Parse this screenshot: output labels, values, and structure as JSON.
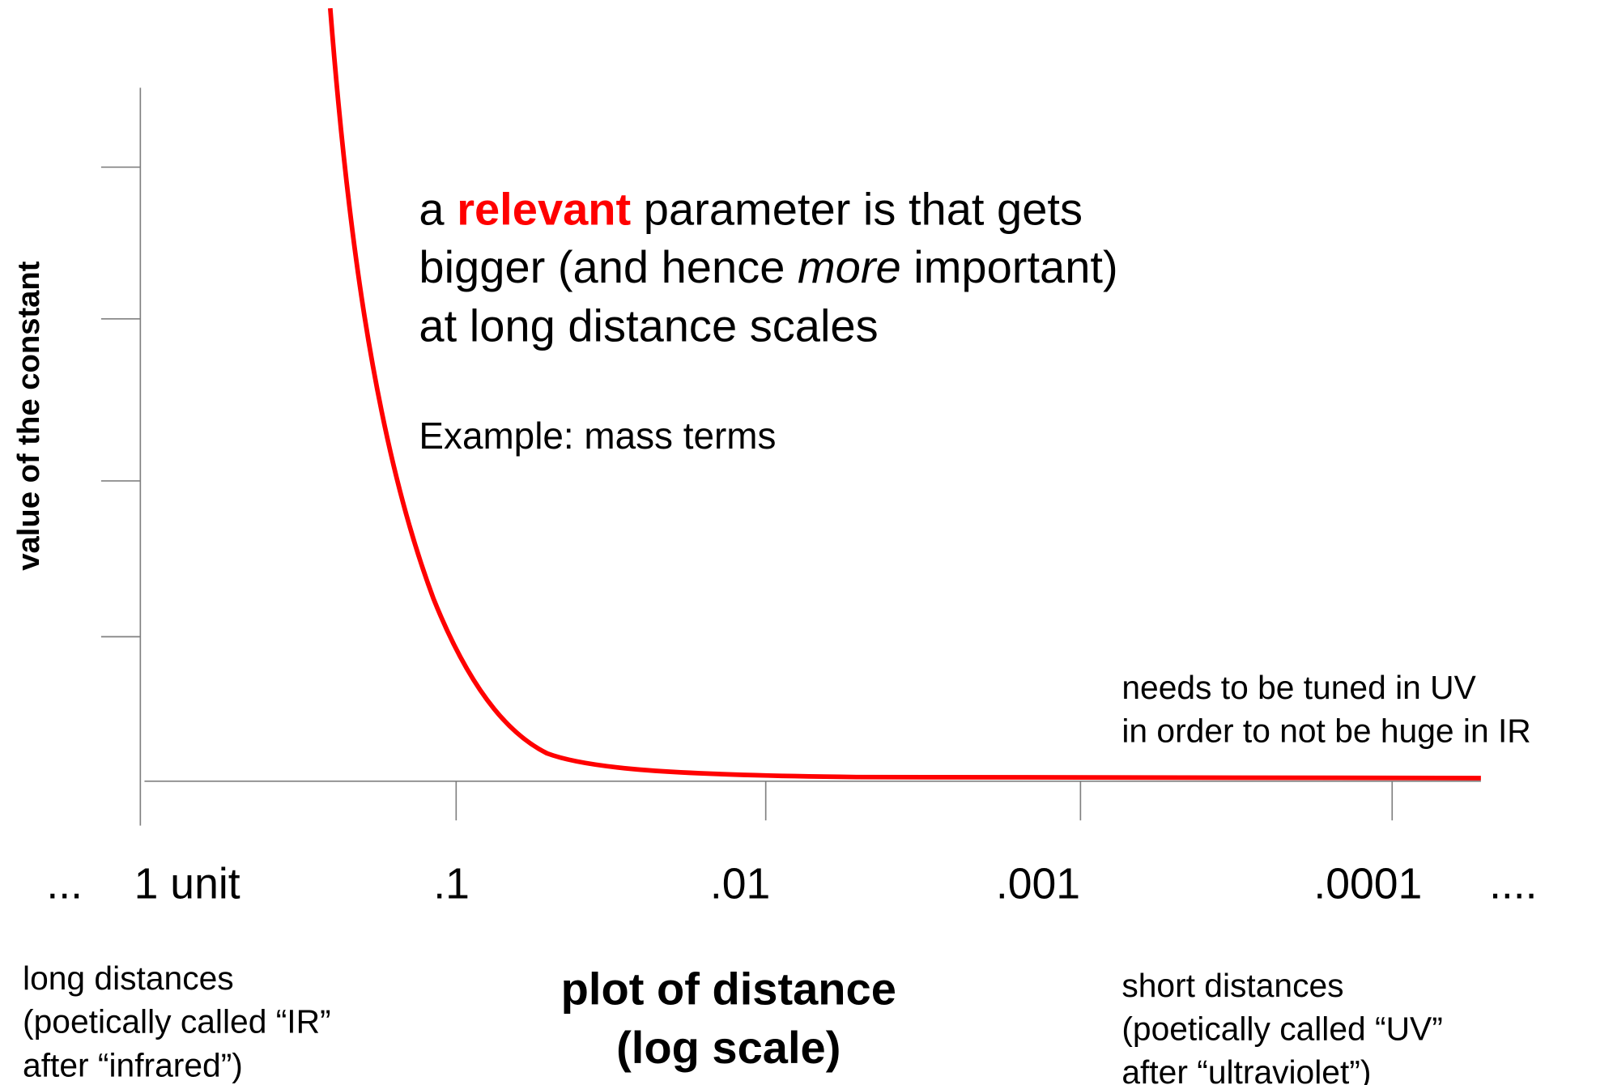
{
  "axis": {
    "y_label": "value of the constant",
    "x_ticks": [
      "...",
      "1 unit",
      ".1",
      ".01",
      ".001",
      ".0001",
      "...."
    ],
    "x_label": [
      "plot of distance",
      "(log scale)"
    ]
  },
  "headline": [
    [
      "a ",
      "relevant",
      " parameter is that gets"
    ],
    [
      "bigger (and hence ",
      "more",
      " important)"
    ],
    [
      "at long distance scales"
    ]
  ],
  "example": "Example: mass terms",
  "note": [
    "needs to be tuned in UV",
    "in order to not be huge in IR"
  ],
  "left_caption": [
    "long distances",
    "(poetically called “IR”",
    "after “infrared”)"
  ],
  "right_caption": [
    "short distances",
    "(poetically called “UV”",
    "after “ultraviolet”)"
  ]
}
